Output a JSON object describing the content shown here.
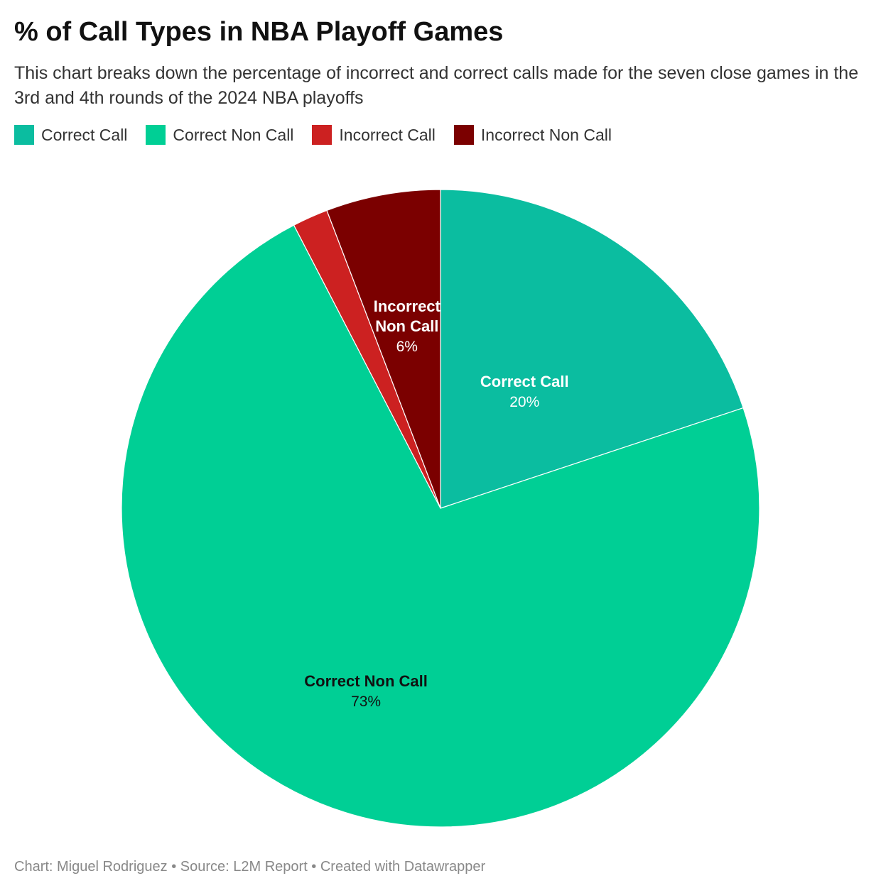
{
  "header": {
    "title": "% of Call Types in NBA Playoff Games",
    "subtitle": "This chart breaks down the percentage of incorrect and correct calls made for the seven close games in the 3rd and 4th rounds of the 2024 NBA playoffs"
  },
  "legend": [
    {
      "label": "Correct Call",
      "color": "#0bbda0"
    },
    {
      "label": "Correct Non Call",
      "color": "#00cf95"
    },
    {
      "label": "Incorrect Call",
      "color": "#cc2121"
    },
    {
      "label": "Incorrect Non Call",
      "color": "#7b0000"
    }
  ],
  "footer": {
    "text": "Chart: Miguel Rodriguez • Source: L2M Report • Created with Datawrapper"
  },
  "chart_data": {
    "type": "pie",
    "title": "% of Call Types in NBA Playoff Games",
    "legend_position": "top-left",
    "slices": [
      {
        "name": "Correct Call",
        "value": 19.9,
        "display": "20%",
        "color": "#0bbda0",
        "label_lines": [
          "Correct Call"
        ],
        "label_color": "#ffffff",
        "show_label": true
      },
      {
        "name": "Correct Non Call",
        "value": 72.5,
        "display": "73%",
        "color": "#00cf95",
        "label_lines": [
          "Correct Non Call"
        ],
        "label_color": "#111111",
        "show_label": true
      },
      {
        "name": "Incorrect Call",
        "value": 1.8,
        "display": "2%",
        "color": "#cc2121",
        "label_lines": [
          "Incorrect Call"
        ],
        "label_color": "#ffffff",
        "show_label": false
      },
      {
        "name": "Incorrect Non Call",
        "value": 5.8,
        "display": "6%",
        "color": "#7b0000",
        "label_lines": [
          "Incorrect",
          "Non Call"
        ],
        "label_color": "#ffffff",
        "show_label": true
      }
    ]
  }
}
